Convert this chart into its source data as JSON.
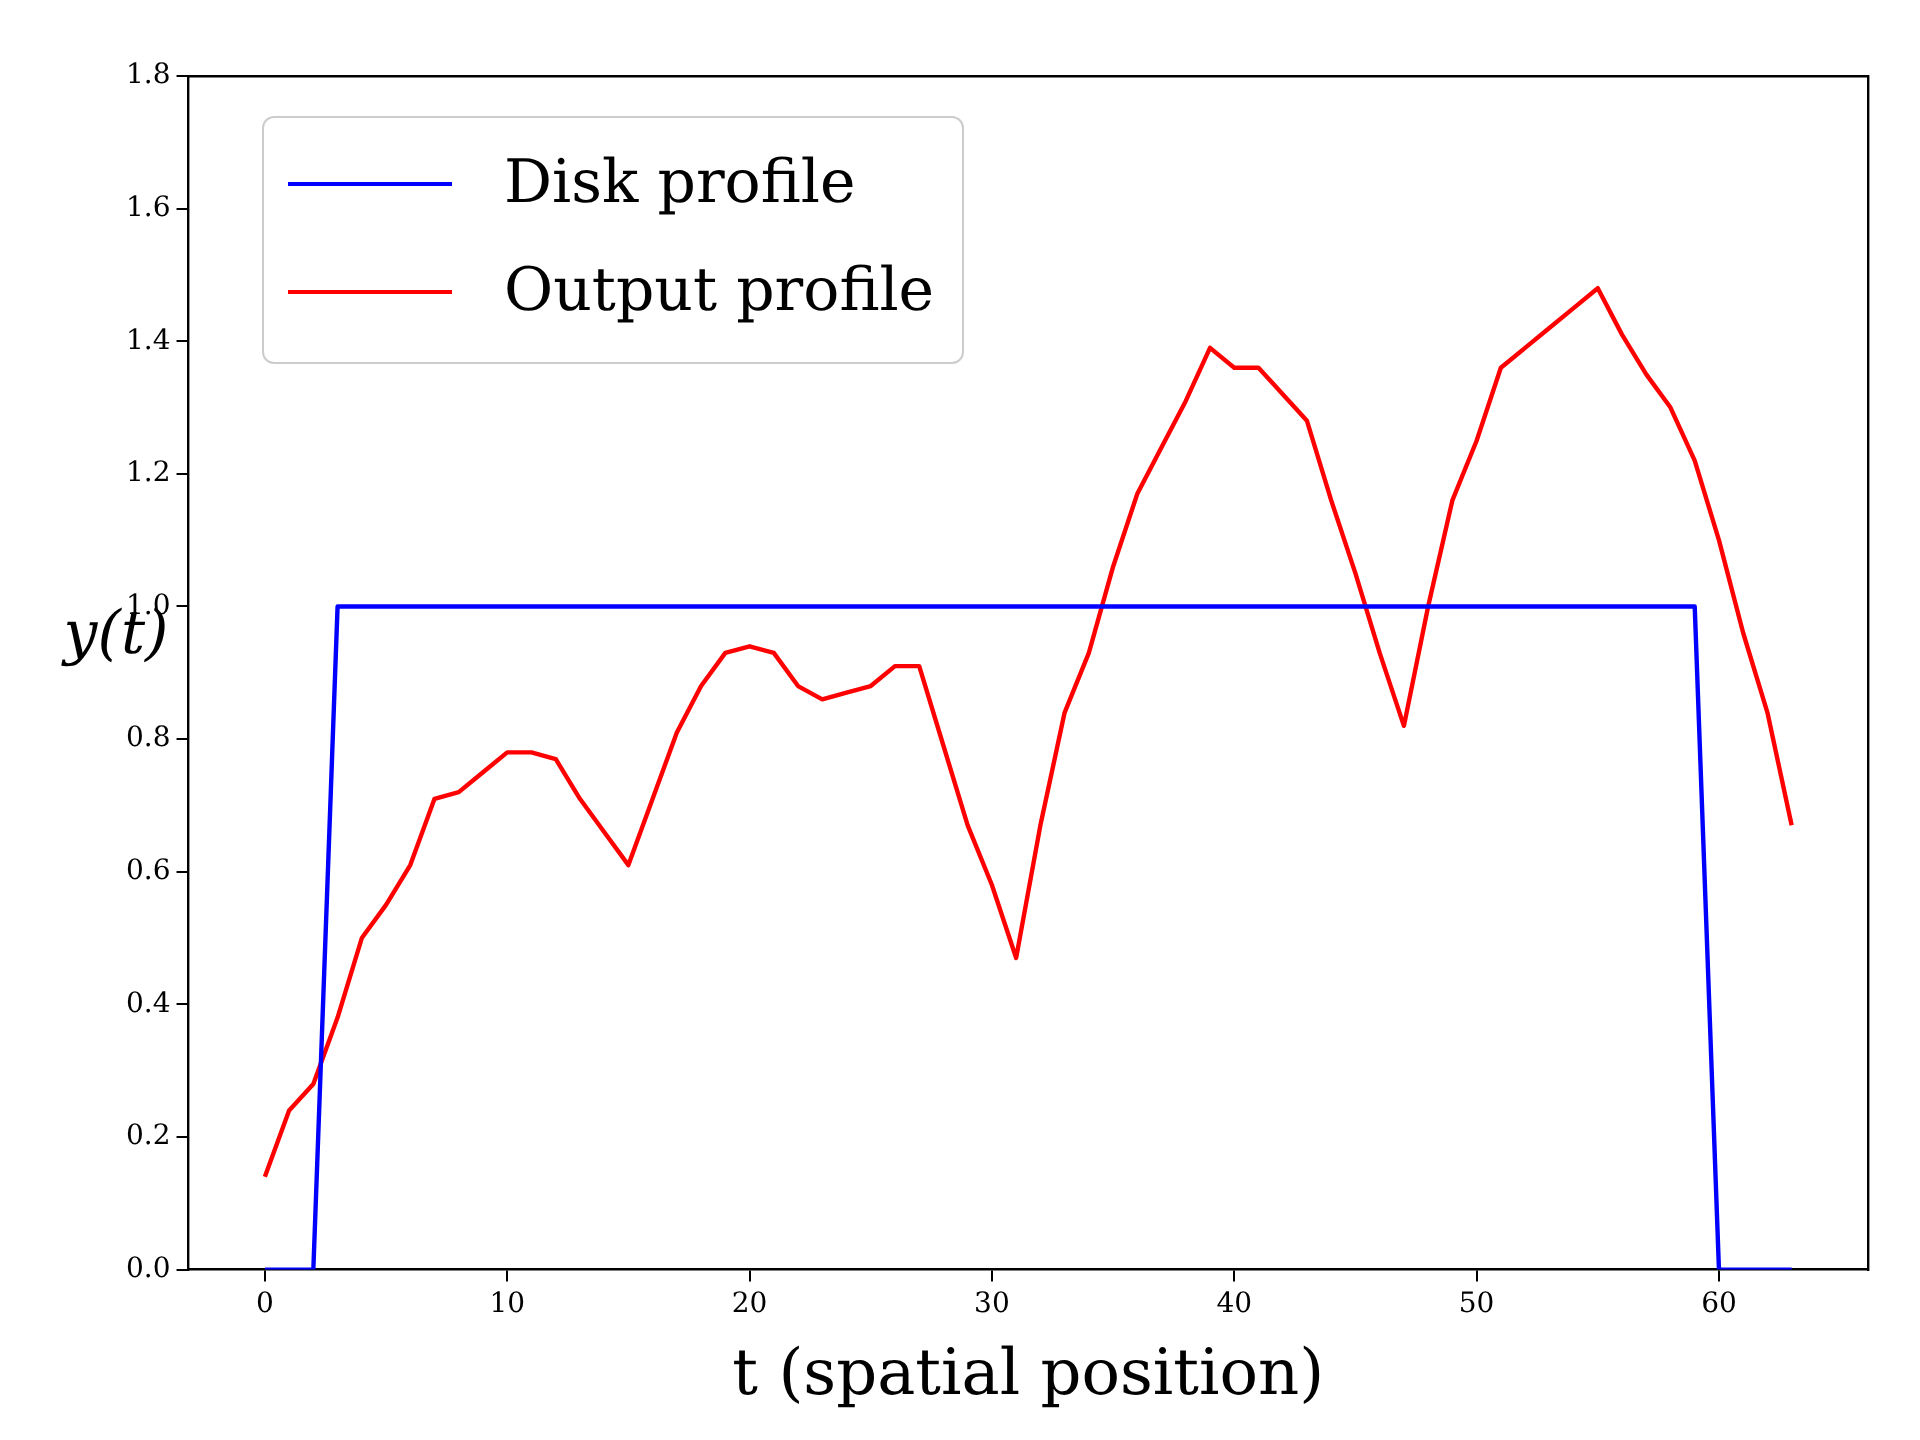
{
  "chart_data": {
    "type": "line",
    "xlabel": "t (spatial position)",
    "ylabel": "y(t)",
    "x": [
      0,
      1,
      2,
      3,
      4,
      5,
      6,
      7,
      8,
      9,
      10,
      11,
      12,
      13,
      14,
      15,
      16,
      17,
      18,
      19,
      20,
      21,
      22,
      23,
      24,
      25,
      26,
      27,
      28,
      29,
      30,
      31,
      32,
      33,
      34,
      35,
      36,
      37,
      38,
      39,
      40,
      41,
      42,
      43,
      44,
      45,
      46,
      47,
      48,
      49,
      50,
      51,
      52,
      53,
      54,
      55,
      56,
      57,
      58,
      59,
      60,
      61,
      62,
      63
    ],
    "series": [
      {
        "name": "Disk profile",
        "color": "#0000ff",
        "values": [
          0,
          0,
          0,
          1,
          1,
          1,
          1,
          1,
          1,
          1,
          1,
          1,
          1,
          1,
          1,
          1,
          1,
          1,
          1,
          1,
          1,
          1,
          1,
          1,
          1,
          1,
          1,
          1,
          1,
          1,
          1,
          1,
          1,
          1,
          1,
          1,
          1,
          1,
          1,
          1,
          1,
          1,
          1,
          1,
          1,
          1,
          1,
          1,
          1,
          1,
          1,
          1,
          1,
          1,
          1,
          1,
          1,
          1,
          1,
          1,
          0,
          0,
          0,
          0
        ]
      },
      {
        "name": "Output profile",
        "color": "#ff0000",
        "values": [
          0.14,
          0.24,
          0.28,
          0.38,
          0.5,
          0.55,
          0.61,
          0.71,
          0.72,
          0.75,
          0.78,
          0.78,
          0.77,
          0.71,
          0.66,
          0.61,
          0.71,
          0.81,
          0.88,
          0.93,
          0.94,
          0.93,
          0.88,
          0.86,
          0.87,
          0.88,
          0.91,
          0.91,
          0.79,
          0.67,
          0.58,
          0.47,
          0.67,
          0.84,
          0.93,
          1.06,
          1.17,
          1.24,
          1.31,
          1.39,
          1.36,
          1.36,
          1.32,
          1.28,
          1.16,
          1.05,
          0.93,
          0.82,
          1.0,
          1.16,
          1.25,
          1.36,
          1.39,
          1.42,
          1.45,
          1.48,
          1.41,
          1.35,
          1.3,
          1.22,
          1.1,
          0.96,
          0.84,
          0.67
        ]
      }
    ],
    "xlim": [
      -3.15,
      66.15
    ],
    "xticks": [
      0,
      10,
      20,
      30,
      40,
      50,
      60
    ],
    "ylim": [
      0,
      1.8
    ],
    "yticks": [
      {
        "value": 0,
        "label": "0.0"
      },
      {
        "value": 0.2,
        "label": "0.2"
      },
      {
        "value": 0.4,
        "label": "0.4"
      },
      {
        "value": 0.6,
        "label": "0.6"
      },
      {
        "value": 0.8,
        "label": "0.8"
      },
      {
        "value": 1,
        "label": "1.0"
      },
      {
        "value": 1.2,
        "label": "1.2"
      },
      {
        "value": 1.4,
        "label": "1.4"
      },
      {
        "value": 1.6,
        "label": "1.6"
      },
      {
        "value": 1.8,
        "label": "1.8"
      }
    ],
    "grid": false,
    "legend": "top left",
    "marker": "none",
    "line_style": "solid"
  }
}
